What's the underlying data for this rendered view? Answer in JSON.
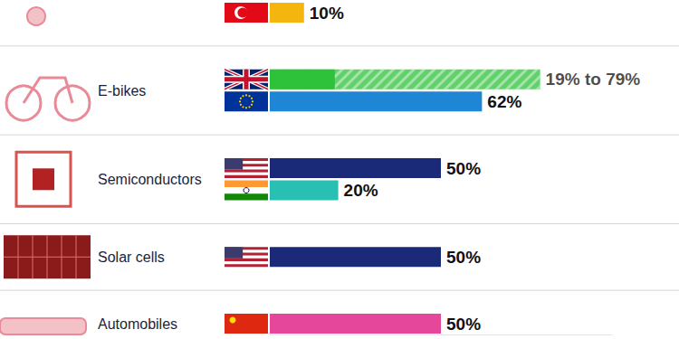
{
  "chart_data": {
    "type": "bar",
    "orientation": "horizontal",
    "categories": [
      null,
      "E-bikes",
      null,
      "Semiconductors",
      null,
      "Solar cells",
      "Automobiles"
    ],
    "values": [
      10,
      19,
      62,
      50,
      20,
      50,
      50
    ],
    "high_values": [
      null,
      79,
      null,
      null,
      null,
      null,
      null
    ],
    "value_labels": [
      "10%",
      "19% to 79%",
      "62%",
      "50%",
      "20%",
      "50%",
      "50%"
    ],
    "colors": [
      "#f5b50f",
      "#2ec23a",
      "#1f86d6",
      "#1b2a78",
      "#2abfb3",
      "#1b2a78",
      "#e5489a"
    ],
    "xlim": [
      0,
      100
    ],
    "tick_labels": false,
    "data_labels": true,
    "grid": false
  }
}
